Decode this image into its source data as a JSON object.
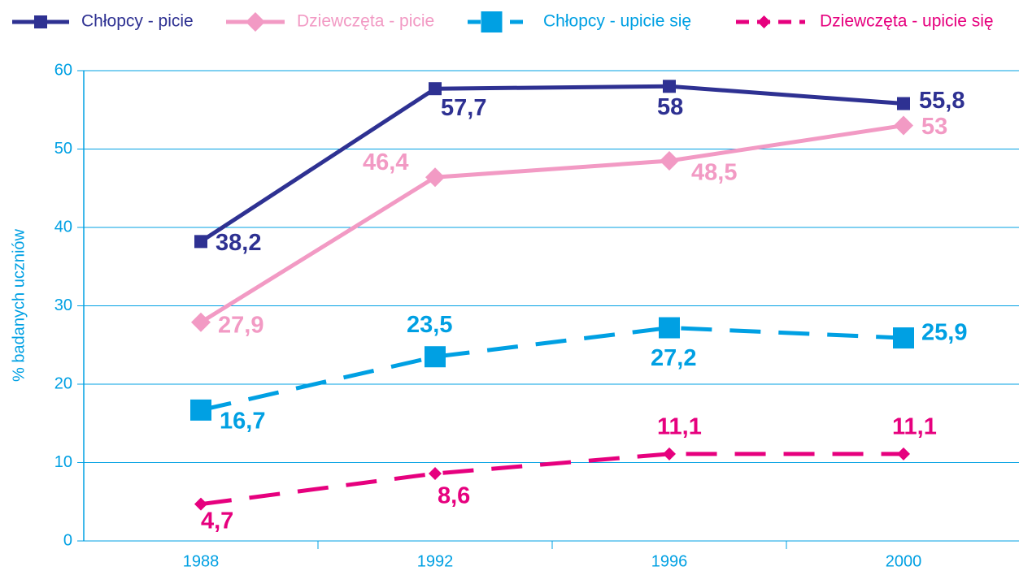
{
  "chart_data": {
    "type": "line",
    "y_label": "% badanych uczniów",
    "categories": [
      "1988",
      "1992",
      "1996",
      "2000"
    ],
    "series": [
      {
        "name": "Chłopcy - picie",
        "color": "#2e3192",
        "dashed": false,
        "marker": "square",
        "values": [
          38.2,
          57.7,
          58,
          55.8
        ],
        "value_labels": [
          "38,2",
          "57,7",
          "58",
          "55,8"
        ]
      },
      {
        "name": "Dziewczęta - picie",
        "color": "#f29ac4",
        "dashed": false,
        "marker": "diamond",
        "values": [
          27.9,
          46.4,
          48.5,
          53
        ],
        "value_labels": [
          "27,9",
          "46,4",
          "48,5",
          "53"
        ]
      },
      {
        "name": "Chłopcy - upicie się",
        "color": "#00a0e3",
        "dashed": true,
        "marker": "big-square",
        "values": [
          16.7,
          23.5,
          27.2,
          25.9
        ],
        "value_labels": [
          "16,7",
          "23,5",
          "27,2",
          "25,9"
        ]
      },
      {
        "name": "Dziewczęta - upicie się",
        "color": "#e6007e",
        "dashed": true,
        "marker": "small-diamond",
        "values": [
          4.7,
          8.6,
          11.1,
          11.1
        ],
        "value_labels": [
          "4,7",
          "8,6",
          "11,1",
          "11,1"
        ]
      }
    ],
    "ylim": [
      0,
      60
    ],
    "yticks": [
      0,
      10,
      20,
      30,
      40,
      50,
      60
    ],
    "grid": true,
    "axis_color": "#00a0e3"
  }
}
